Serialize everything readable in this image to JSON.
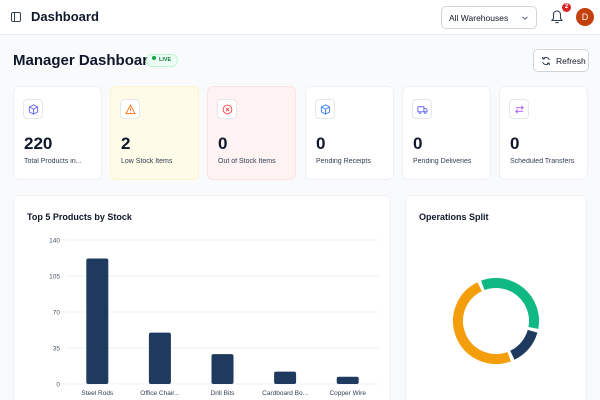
{
  "topbar": {
    "title": "Dashboard",
    "warehouse_select": "All Warehouses",
    "notification_count": "2",
    "avatar_initial": "D"
  },
  "page": {
    "title": "Manager Dashboard",
    "live_label": "LIVE",
    "refresh_label": "Refresh"
  },
  "kpis": [
    {
      "value": "220",
      "label": "Total Products in...",
      "icon": "box-icon",
      "icon_color": "#6366f1"
    },
    {
      "value": "2",
      "label": "Low Stock Items",
      "icon": "warning-icon",
      "icon_color": "#f97316"
    },
    {
      "value": "0",
      "label": "Out of Stock Items",
      "icon": "x-circle-icon",
      "icon_color": "#ef4444"
    },
    {
      "value": "0",
      "label": "Pending Receipts",
      "icon": "box-icon",
      "icon_color": "#3b82f6"
    },
    {
      "value": "0",
      "label": "Pending Deliveries",
      "icon": "truck-icon",
      "icon_color": "#6366f1"
    },
    {
      "value": "0",
      "label": "Scheduled Transfers",
      "icon": "transfer-icon",
      "icon_color": "#a855f7"
    }
  ],
  "bar_panel": {
    "title": "Top 5 Products by Stock"
  },
  "donut_panel": {
    "title": "Operations Split"
  },
  "colors": {
    "bar": "#1e3a5f",
    "donut_green": "#10b981",
    "donut_navy": "#1e3a5f",
    "donut_orange": "#f59e0b"
  },
  "chart_data": [
    {
      "type": "bar",
      "title": "Top 5 Products by Stock",
      "categories": [
        "Steel Rods",
        "Office Chair...",
        "Drill Bits",
        "Cardboard Bo...",
        "Copper Wire"
      ],
      "values": [
        122,
        50,
        29,
        12,
        7
      ],
      "ylim": [
        0,
        140
      ],
      "yticks": [
        0,
        35,
        70,
        105,
        140
      ],
      "grid": true,
      "legend": "none"
    },
    {
      "type": "pie",
      "title": "Operations Split",
      "values": [
        35,
        15,
        50
      ],
      "colors": [
        "#10b981",
        "#1e3a5f",
        "#f59e0b"
      ],
      "legend": "none"
    }
  ]
}
